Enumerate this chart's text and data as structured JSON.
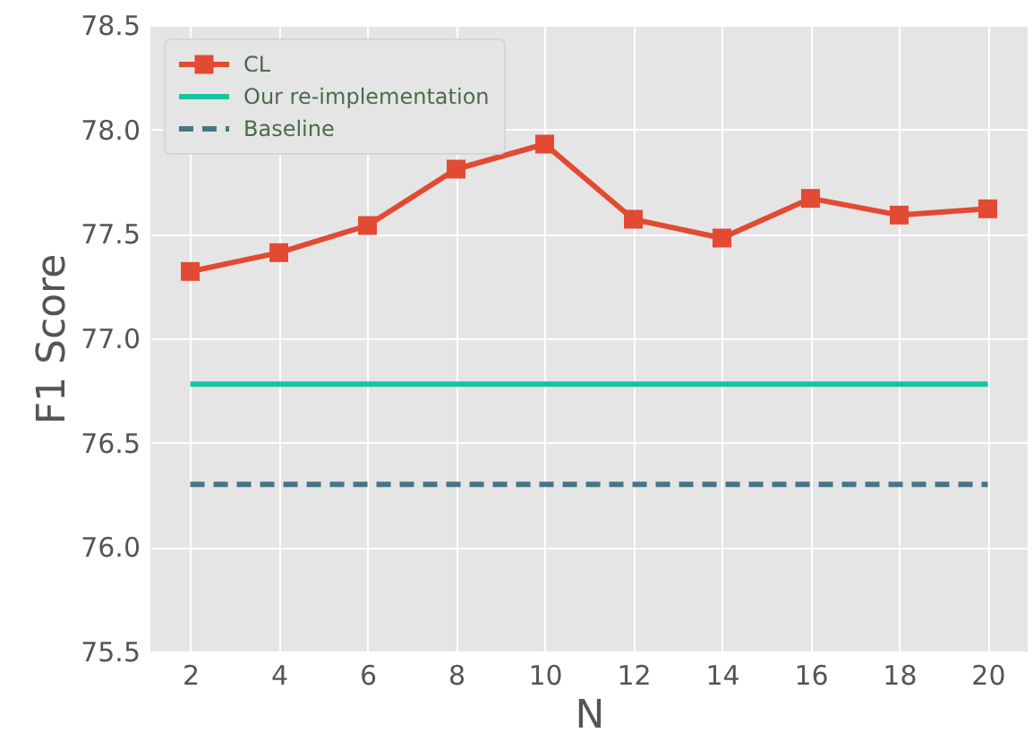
{
  "chart_data": {
    "type": "line",
    "xlabel": "N",
    "ylabel": "F1 Score",
    "x": [
      2,
      4,
      6,
      8,
      10,
      12,
      14,
      16,
      18,
      20
    ],
    "series": [
      {
        "name": "CL",
        "color": "#e24a33",
        "marker": "square",
        "line_style": "solid",
        "values": [
          77.32,
          77.41,
          77.54,
          77.81,
          77.93,
          77.57,
          77.48,
          77.67,
          77.59,
          77.62
        ]
      },
      {
        "name": "Our re-implementation",
        "color": "#17c3a0",
        "marker": "none",
        "line_style": "solid",
        "values": [
          76.78,
          76.78,
          76.78,
          76.78,
          76.78,
          76.78,
          76.78,
          76.78,
          76.78,
          76.78
        ]
      },
      {
        "name": "Baseline",
        "color": "#467686",
        "marker": "none",
        "line_style": "dashed",
        "values": [
          76.3,
          76.3,
          76.3,
          76.3,
          76.3,
          76.3,
          76.3,
          76.3,
          76.3,
          76.3
        ]
      }
    ],
    "xlim": [
      1.1,
      20.9
    ],
    "xticks": [
      2,
      4,
      6,
      8,
      10,
      12,
      14,
      16,
      18,
      20
    ],
    "ylim": [
      75.5,
      78.5
    ],
    "yticks": [
      75.5,
      {
        "value": 76,
        "label": "76.0"
      },
      76.5,
      {
        "value": 77,
        "label": "77.0"
      },
      77.5,
      {
        "value": 78,
        "label": "78.0"
      },
      78.5
    ],
    "grid": true,
    "legend": "top left"
  }
}
